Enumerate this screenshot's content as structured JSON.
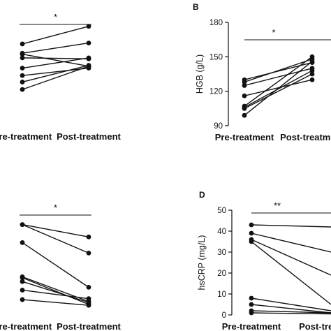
{
  "chart_data": [
    {
      "type": "line",
      "panel": "A",
      "panel_label": "",
      "categories": [
        "Pre-treatment",
        "Post-treatment"
      ],
      "ylabel": "",
      "yticks": [],
      "significance": "*",
      "series": [
        {
          "values": [
            0.79,
            0.98
          ]
        },
        {
          "values": [
            0.69,
            0.8
          ]
        },
        {
          "values": [
            0.68,
            0.55
          ]
        },
        {
          "values": [
            0.64,
            0.63
          ]
        },
        {
          "values": [
            0.53,
            0.64
          ]
        },
        {
          "values": [
            0.45,
            0.53
          ]
        },
        {
          "values": [
            0.38,
            0.56
          ]
        },
        {
          "values": [
            0.3,
            0.55
          ]
        }
      ]
    },
    {
      "type": "line",
      "panel": "B",
      "panel_label": "B",
      "categories": [
        "Pre-treatment",
        "Post-treatment"
      ],
      "ylabel": "HGB (g/L)",
      "ylim": [
        90,
        180
      ],
      "yticks": [
        "90",
        "120",
        "150",
        "180"
      ],
      "significance": "*",
      "series": [
        {
          "values": [
            130,
            145
          ]
        },
        {
          "values": [
            128,
            148
          ]
        },
        {
          "values": [
            125,
            140
          ]
        },
        {
          "values": [
            116,
            130
          ]
        },
        {
          "values": [
            107,
            150
          ]
        },
        {
          "values": [
            106,
            138
          ]
        },
        {
          "values": [
            105,
            135
          ]
        },
        {
          "values": [
            99,
            146
          ]
        }
      ]
    },
    {
      "type": "line",
      "panel": "C",
      "panel_label": "",
      "categories": [
        "Pre-treatment",
        "Post-treatment"
      ],
      "ylabel": "",
      "yticks": [],
      "significance": "*",
      "series": [
        {
          "values": [
            0.9,
            0.77
          ]
        },
        {
          "values": [
            0.9,
            0.6
          ]
        },
        {
          "values": [
            0.71,
            0.24
          ]
        },
        {
          "values": [
            0.35,
            0.09
          ]
        },
        {
          "values": [
            0.34,
            0.06
          ]
        },
        {
          "values": [
            0.3,
            0.08
          ]
        },
        {
          "values": [
            0.21,
            0.12
          ]
        },
        {
          "values": [
            0.11,
            0.05
          ]
        }
      ]
    },
    {
      "type": "line",
      "panel": "D",
      "panel_label": "D",
      "categories": [
        "Pre-treatment",
        "Post-treatment"
      ],
      "ylabel": "hsCRP (mg/L)",
      "ylim": [
        0,
        50
      ],
      "yticks": [
        "0",
        "10",
        "20",
        "30",
        "40",
        "50"
      ],
      "significance": "**",
      "series": [
        {
          "values": [
            43,
            42
          ]
        },
        {
          "values": [
            39,
            30
          ]
        },
        {
          "values": [
            36,
            19
          ]
        },
        {
          "values": [
            35,
            5
          ]
        },
        {
          "values": [
            8,
            2
          ]
        },
        {
          "values": [
            5,
            1
          ]
        },
        {
          "values": [
            2,
            1
          ]
        },
        {
          "values": [
            1,
            0.5
          ]
        }
      ]
    }
  ]
}
